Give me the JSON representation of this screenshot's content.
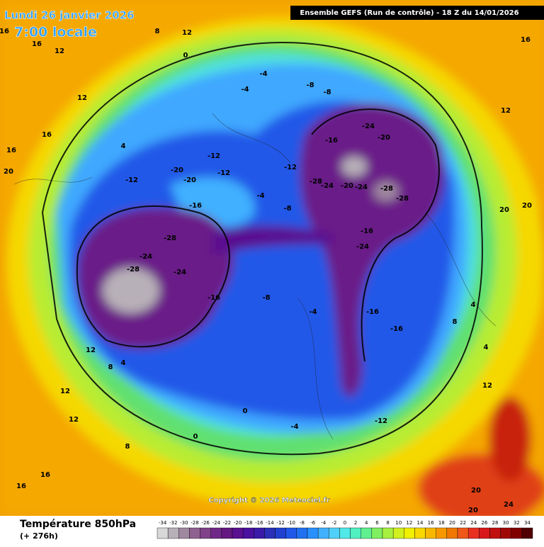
{
  "header": {
    "date": "Lundi 26 janvier 2026",
    "time": "7:00 locale",
    "run": "Ensemble GEFS  (Run de contrôle)  -  18 Z du 14/01/2026"
  },
  "copyright": "Copyright © 2026 Meteociel.fr",
  "footer": {
    "title": "Température 850hPa",
    "lead": "(+ 276h)"
  },
  "legend": {
    "values": [
      -34,
      -32,
      -30,
      -28,
      -26,
      -24,
      -22,
      -20,
      -18,
      -16,
      -14,
      -12,
      -10,
      -8,
      -6,
      -4,
      -2,
      0,
      2,
      4,
      6,
      8,
      10,
      12,
      14,
      16,
      18,
      20,
      22,
      24,
      26,
      28,
      30,
      32,
      34
    ],
    "colors": [
      "#d8d8d8",
      "#b8b0b8",
      "#a088a0",
      "#906090",
      "#80408a",
      "#702888",
      "#641880",
      "#5a1090",
      "#4a10a0",
      "#3a1aa8",
      "#2a30b8",
      "#2040d0",
      "#2058e8",
      "#2070f0",
      "#2890ff",
      "#40b0ff",
      "#50d0f8",
      "#50e8e8",
      "#50f0c0",
      "#60f090",
      "#80f060",
      "#a8f040",
      "#d0f020",
      "#f0f000",
      "#f8d800",
      "#f8b800",
      "#f89800",
      "#f07800",
      "#f05818",
      "#e83020",
      "#d81818",
      "#c01010",
      "#a00808",
      "#800000",
      "#500000"
    ]
  },
  "map": {
    "labels": [
      16,
      16,
      12,
      12,
      16,
      16,
      20,
      8,
      12,
      16,
      12,
      0,
      -4,
      -8,
      -8,
      -4,
      -12,
      -12,
      -20,
      -20,
      -16,
      -28,
      -24,
      -28,
      -24,
      -16,
      -8,
      -4,
      -12,
      -12,
      -8,
      -24,
      -20,
      -16,
      -28,
      -24,
      -20,
      -24,
      -28,
      -28,
      -16,
      -24,
      -16,
      -16,
      -12,
      -4,
      -4,
      0,
      0,
      4,
      4,
      8,
      12,
      12,
      16,
      20,
      20,
      24,
      20,
      20,
      12,
      8,
      4,
      4,
      12,
      16,
      8
    ]
  }
}
